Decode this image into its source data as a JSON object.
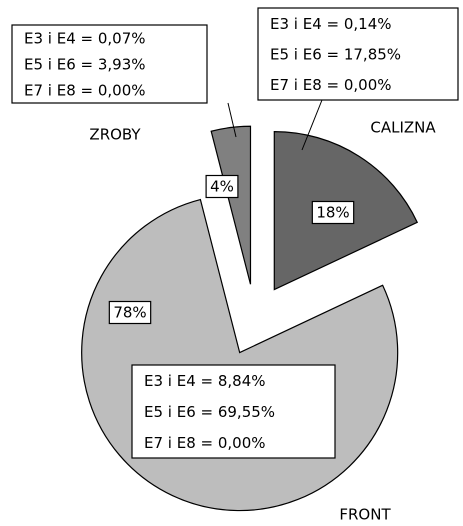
{
  "chart_data": {
    "type": "pie",
    "categories": [
      "CALIZNA",
      "FRONT",
      "ZROBY"
    ],
    "values": [
      18,
      78,
      4
    ],
    "value_labels": [
      "18%",
      "78%",
      "4%"
    ],
    "colors": [
      "#666666",
      "#bdbdbd",
      "#808080"
    ],
    "annotations": [
      [
        "E3 i E4 = 0,14%",
        "E5 i E6 = 17,85%",
        "E7 i E8 = 0,00%"
      ],
      [
        "E3 i E4 = 8,84%",
        "E5 i E6 = 69,55%",
        "E7 i E8 = 0,00%"
      ],
      [
        "E3 i E4 = 0,07%",
        "E5 i E6 = 3,93%",
        "E7 i E8 = 0,00%"
      ]
    ]
  }
}
